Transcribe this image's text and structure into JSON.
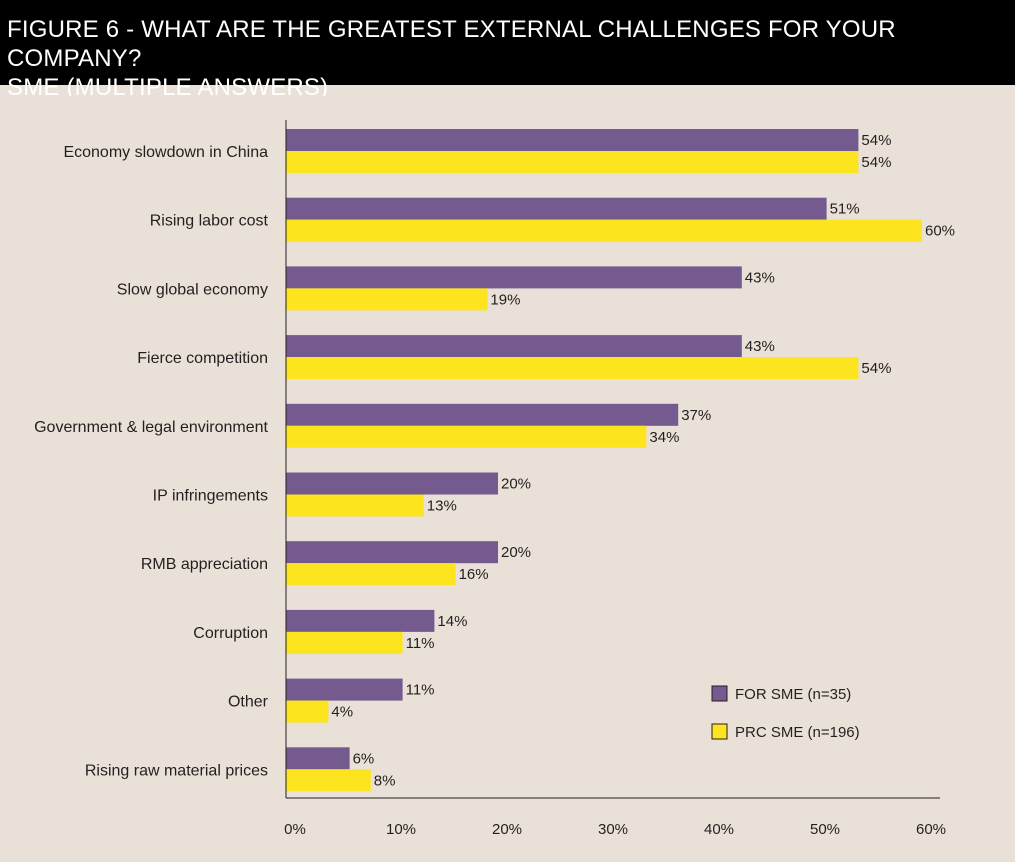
{
  "header": {
    "title_line1": "FIGURE 6 - WHAT ARE THE GREATEST EXTERNAL CHALLENGES FOR YOUR COMPANY?",
    "title_line2": "SME (MULTIPLE ANSWERS)"
  },
  "colors": {
    "background": "#e9e1d7",
    "header_bg": "#000000",
    "header_text": "#ffffff",
    "series_for_sme": "#745a8e",
    "series_prc_sme": "#fce51e",
    "text": "#231f20"
  },
  "chart_data": {
    "type": "bar",
    "orientation": "horizontal",
    "categories": [
      "Economy slowdown in China",
      "Rising labor cost",
      "Slow global economy",
      "Fierce competition",
      "Government & legal environment",
      "IP infringements",
      "RMB appreciation",
      "Corruption",
      "Other",
      "Rising raw material prices"
    ],
    "series": [
      {
        "name": "FOR SME (n=35)",
        "color": "#745a8e",
        "values": [
          54,
          51,
          43,
          43,
          37,
          20,
          20,
          14,
          11,
          6
        ],
        "labels": [
          "54%",
          "51%",
          "43%",
          "43%",
          "37%",
          "20%",
          "20%",
          "14%",
          "11%",
          "6%"
        ]
      },
      {
        "name": "PRC SME (n=196)",
        "color": "#fce51e",
        "values": [
          54,
          60,
          19,
          54,
          34,
          13,
          16,
          11,
          4,
          8
        ],
        "labels": [
          "54%",
          "60%",
          "19%",
          "54%",
          "34%",
          "13%",
          "16%",
          "11%",
          "4%",
          "8%"
        ]
      }
    ],
    "x_ticks": [
      "0%",
      "10%",
      "20%",
      "30%",
      "40%",
      "50%",
      "60%"
    ],
    "x_tick_values": [
      0,
      10,
      20,
      30,
      40,
      50,
      60
    ],
    "xlim": [
      0,
      60
    ],
    "grid": false,
    "legend_position": "bottom-right"
  }
}
